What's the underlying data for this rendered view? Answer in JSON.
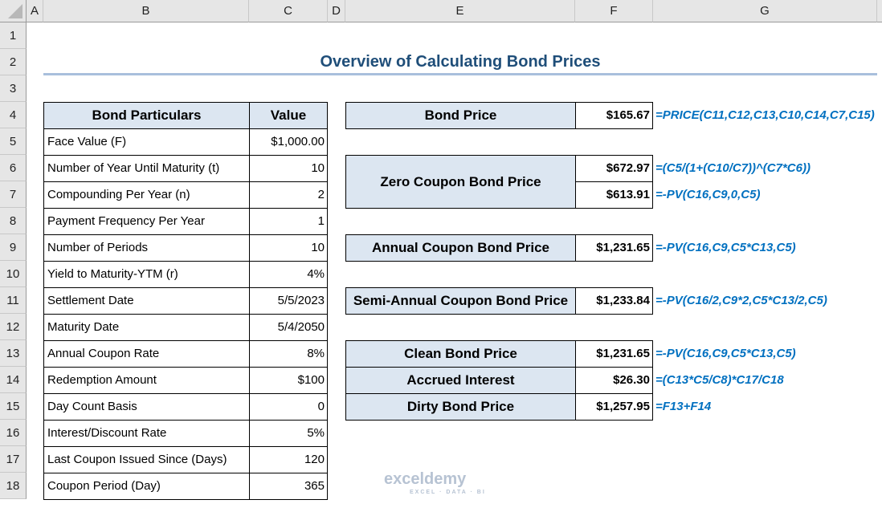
{
  "columns": [
    "A",
    "B",
    "C",
    "D",
    "E",
    "F",
    "G"
  ],
  "rows": [
    "1",
    "2",
    "3",
    "4",
    "5",
    "6",
    "7",
    "8",
    "9",
    "10",
    "11",
    "12",
    "13",
    "14",
    "15",
    "16",
    "17",
    "18"
  ],
  "title": "Overview of Calculating Bond Prices",
  "left_table": {
    "header": [
      "Bond Particulars",
      "Value"
    ],
    "rows": [
      [
        "Face Value (F)",
        "$1,000.00"
      ],
      [
        "Number of Year Until Maturity (t)",
        "10"
      ],
      [
        "Compounding Per Year (n)",
        "2"
      ],
      [
        "Payment Frequency Per Year",
        "1"
      ],
      [
        "Number of Periods",
        "10"
      ],
      [
        "Yield to Maturity-YTM (r)",
        "4%"
      ],
      [
        "Settlement Date",
        "5/5/2023"
      ],
      [
        "Maturity Date",
        "5/4/2050"
      ],
      [
        "Annual Coupon Rate",
        "8%"
      ],
      [
        "Redemption Amount",
        "$100"
      ],
      [
        "Day Count Basis",
        "0"
      ],
      [
        "Interest/Discount Rate",
        "5%"
      ],
      [
        "Last Coupon Issued Since (Days)",
        "120"
      ],
      [
        "Coupon Period (Day)",
        "365"
      ]
    ]
  },
  "right": {
    "bond_price": {
      "label": "Bond Price",
      "value": "$165.67",
      "formula": "=PRICE(C11,C12,C13,C10,C14,C7,C15)"
    },
    "zero_coupon": {
      "label": "Zero Coupon Bond Price",
      "value1": "$672.97",
      "formula1": "=(C5/(1+(C10/C7))^(C7*C6))",
      "value2": "$613.91",
      "formula2": "=-PV(C16,C9,0,C5)"
    },
    "annual": {
      "label": "Annual Coupon Bond Price",
      "value": "$1,231.65",
      "formula": "=-PV(C16,C9,C5*C13,C5)"
    },
    "semi": {
      "label": "Semi-Annual Coupon Bond Price",
      "value": "$1,233.84",
      "formula": "=-PV(C16/2,C9*2,C5*C13/2,C5)"
    },
    "clean": {
      "label": "Clean Bond Price",
      "value": "$1,231.65",
      "formula": "=-PV(C16,C9,C5*C13,C5)"
    },
    "accrued": {
      "label": "Accrued Interest",
      "value": "$26.30",
      "formula": "=(C13*C5/C8)*C17/C18"
    },
    "dirty": {
      "label": "Dirty Bond Price",
      "value": "$1,257.95",
      "formula": "=F13+F14"
    }
  },
  "watermark": {
    "name": "exceldemy",
    "tagline": "EXCEL · DATA · BI"
  }
}
